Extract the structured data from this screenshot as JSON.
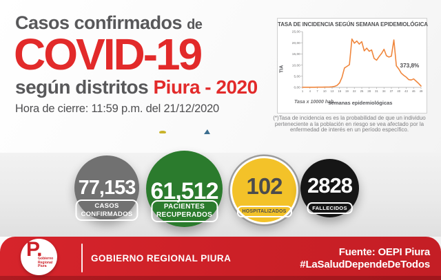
{
  "header": {
    "title_part1": "Casos confirmados",
    "title_part1_suffix": "de",
    "covid_title": "COVID-19",
    "subtitle_gray": "según distritos",
    "subtitle_red": "Piura - 2020",
    "closing_time": "Hora de cierre: 11:59 p.m. del 21/12/2020",
    "accent_red": "#e22a2a",
    "text_gray": "#58585a"
  },
  "chart_note": "(*)Tasa de incidencia es es la probabilidad de que un individuo perteneciente a la población en riesgo se vea afectado por la enfermedad de interés en un período específico.",
  "chart_data": {
    "type": "line",
    "title": "TASA DE INCIDENCIA SEGÚN SEMANA EPIDEMIOLÓGICA",
    "xlabel": "semanas epidemiológicas",
    "ylabel": "TIA",
    "footnote": "Tasa x 10000 hab.",
    "line_color": "#f0863c",
    "axis_color": "#a8a8a8",
    "tick_text_color": "#6b6b6d",
    "grid": false,
    "xlim": [
      1,
      49
    ],
    "ylim": [
      0,
      25
    ],
    "x_ticks": [
      1,
      4,
      7,
      10,
      13,
      16,
      19,
      22,
      25,
      28,
      31,
      34,
      37,
      40,
      43,
      46,
      49
    ],
    "y_tick_values": [
      0,
      5,
      10,
      15,
      20,
      25
    ],
    "y_tick_labels": [
      "0,00",
      "5,00",
      "10,00",
      "15,00",
      "20,00",
      "25,00"
    ],
    "x": [
      1,
      2,
      3,
      4,
      5,
      6,
      7,
      8,
      9,
      10,
      11,
      12,
      13,
      14,
      15,
      16,
      17,
      18,
      19,
      20,
      21,
      22,
      23,
      24,
      25,
      26,
      27,
      28,
      29,
      30,
      31,
      32,
      33,
      34,
      35,
      36,
      37,
      38,
      39,
      40,
      41,
      42,
      43,
      44,
      45,
      46,
      47,
      48,
      49
    ],
    "values": [
      0.05,
      0.05,
      0.05,
      0.05,
      0.05,
      0.06,
      0.08,
      0.1,
      0.1,
      0.12,
      0.15,
      0.18,
      0.25,
      0.45,
      0.9,
      2.0,
      4.5,
      8.7,
      9.4,
      10.2,
      21.7,
      19.8,
      20.8,
      19.4,
      20.5,
      16.4,
      17.6,
      16.2,
      16.8,
      13.0,
      12.2,
      13.8,
      15.2,
      17.1,
      14.2,
      13.6,
      14.0,
      21.3,
      9.7,
      8.2,
      6.4,
      5.4,
      4.6,
      3.5,
      3.3,
      3.8,
      2.8,
      1.8,
      0.6
    ],
    "annotation": {
      "text": "373,8%",
      "week": 40.5,
      "value": 9.0,
      "color": "#4b4b4e"
    }
  },
  "stats": [
    {
      "value": "77,153",
      "label_lines": [
        "CASOS",
        "CONFIRMADOS"
      ],
      "color": "#717171",
      "text_color": "#ffffff"
    },
    {
      "value": "61,512",
      "label_lines": [
        "PACIENTES",
        "RECUPERADOS"
      ],
      "color": "#2b7b2d",
      "text_color": "#ffffff"
    },
    {
      "value": "102",
      "label_lines": [
        "HOSPITALIZADOS"
      ],
      "color": "#f3c229",
      "text_color": "#4b4b4d",
      "ring_color": "#9b9b9b"
    },
    {
      "value": "2828",
      "label_lines": [
        "FALLECIDOS"
      ],
      "color": "#161616",
      "text_color": "#ffffff"
    }
  ],
  "footer": {
    "org": "GOBIERNO REGIONAL PIURA",
    "logo_letter": "P.",
    "logo_lines": [
      "Gobierno",
      "Regional",
      "Piura"
    ],
    "source": "Fuente: OEPI Piura",
    "hashtag": "#LaSaludDependeDeTodos",
    "bar_color": "#cc2027"
  }
}
